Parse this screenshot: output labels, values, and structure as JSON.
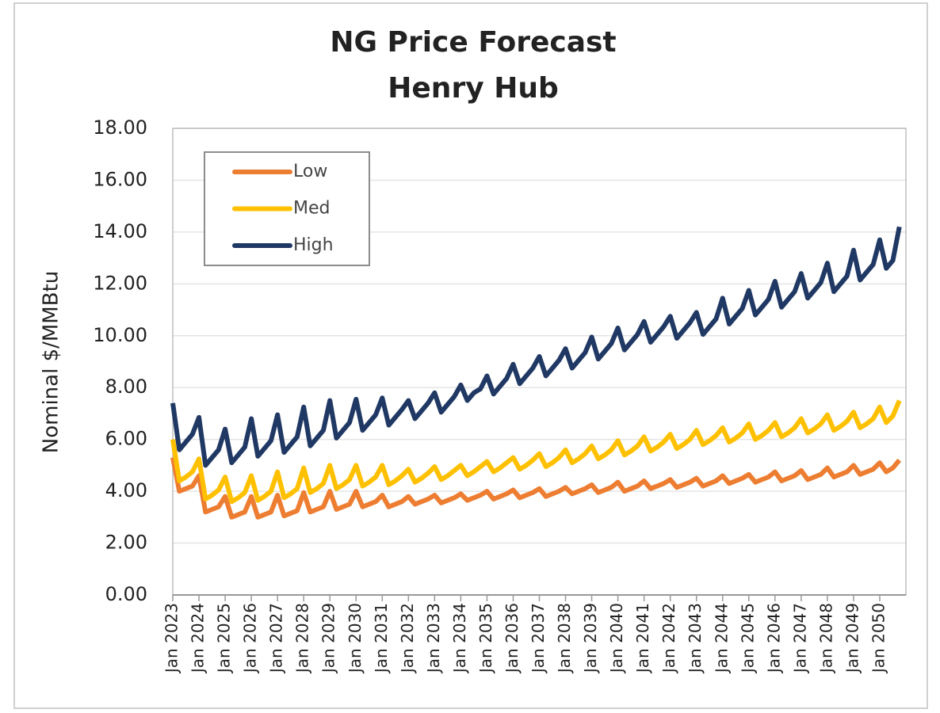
{
  "chart_data": {
    "type": "line",
    "title": "NG Price Forecast",
    "subtitle": "Henry Hub",
    "y_label": "Nominal $/MMBtu",
    "categories": [
      "Jan 2023",
      null,
      null,
      null,
      "Jan 2024",
      null,
      null,
      null,
      "Jan 2025",
      null,
      null,
      null,
      "Jan 2026",
      null,
      null,
      null,
      "Jan 2027",
      null,
      null,
      null,
      "Jan 2028",
      null,
      null,
      null,
      "Jan 2029",
      null,
      null,
      null,
      "Jan 2030",
      null,
      null,
      null,
      "Jan 2031",
      null,
      null,
      null,
      "Jan 2032",
      null,
      null,
      null,
      "Jan 2033",
      null,
      null,
      null,
      "Jan 2034",
      null,
      null,
      null,
      "Jan 2035",
      null,
      null,
      null,
      "Jan 2036",
      null,
      null,
      null,
      "Jan 2037",
      null,
      null,
      null,
      "Jan 2038",
      null,
      null,
      null,
      "Jan 2039",
      null,
      null,
      null,
      "Jan 2040",
      null,
      null,
      null,
      "Jan 2041",
      null,
      null,
      null,
      "Jan 2042",
      null,
      null,
      null,
      "Jan 2043",
      null,
      null,
      null,
      "Jan 2044",
      null,
      null,
      null,
      "Jan 2045",
      null,
      null,
      null,
      "Jan 2046",
      null,
      null,
      null,
      "Jan 2047",
      null,
      null,
      null,
      "Jan 2048",
      null,
      null,
      null,
      "Jan 2049",
      null,
      null,
      null,
      "Jan 2050",
      null,
      null,
      null
    ],
    "series": [
      {
        "name": "Low",
        "color": "#ed7d31",
        "values": [
          5.3,
          4.0,
          4.1,
          4.2,
          4.6,
          3.2,
          3.3,
          3.4,
          3.8,
          3.0,
          3.1,
          3.2,
          3.8,
          3.0,
          3.1,
          3.2,
          3.85,
          3.05,
          3.15,
          3.25,
          3.95,
          3.2,
          3.3,
          3.4,
          4.0,
          3.3,
          3.4,
          3.5,
          4.0,
          3.4,
          3.5,
          3.6,
          3.85,
          3.4,
          3.5,
          3.6,
          3.8,
          3.5,
          3.6,
          3.7,
          3.85,
          3.55,
          3.65,
          3.75,
          3.9,
          3.65,
          3.75,
          3.85,
          4.0,
          3.7,
          3.8,
          3.9,
          4.05,
          3.75,
          3.85,
          3.95,
          4.1,
          3.8,
          3.9,
          4.0,
          4.15,
          3.9,
          4.0,
          4.1,
          4.25,
          3.95,
          4.05,
          4.15,
          4.35,
          4.0,
          4.1,
          4.2,
          4.4,
          4.1,
          4.2,
          4.3,
          4.45,
          4.15,
          4.25,
          4.35,
          4.5,
          4.2,
          4.3,
          4.4,
          4.6,
          4.3,
          4.4,
          4.5,
          4.65,
          4.35,
          4.45,
          4.55,
          4.75,
          4.4,
          4.5,
          4.6,
          4.8,
          4.45,
          4.55,
          4.65,
          4.9,
          4.55,
          4.65,
          4.75,
          5.0,
          4.65,
          4.75,
          4.85,
          5.1,
          4.75,
          4.9,
          5.2
        ]
      },
      {
        "name": "Med",
        "color": "#ffc000",
        "values": [
          6.0,
          4.4,
          4.55,
          4.75,
          5.25,
          3.7,
          3.85,
          4.05,
          4.55,
          3.6,
          3.75,
          3.95,
          4.6,
          3.65,
          3.8,
          4.0,
          4.75,
          3.75,
          3.9,
          4.1,
          4.9,
          3.95,
          4.1,
          4.3,
          5.0,
          4.1,
          4.25,
          4.45,
          5.0,
          4.2,
          4.35,
          4.55,
          5.0,
          4.25,
          4.4,
          4.6,
          4.85,
          4.35,
          4.5,
          4.7,
          4.95,
          4.45,
          4.6,
          4.8,
          5.0,
          4.6,
          4.75,
          4.95,
          5.15,
          4.75,
          4.9,
          5.1,
          5.3,
          4.85,
          5.0,
          5.2,
          5.45,
          4.95,
          5.1,
          5.3,
          5.6,
          5.1,
          5.25,
          5.45,
          5.75,
          5.25,
          5.4,
          5.6,
          5.95,
          5.4,
          5.55,
          5.75,
          6.1,
          5.55,
          5.7,
          5.9,
          6.2,
          5.65,
          5.8,
          6.0,
          6.35,
          5.8,
          5.95,
          6.15,
          6.45,
          5.9,
          6.05,
          6.25,
          6.6,
          6.0,
          6.15,
          6.35,
          6.65,
          6.1,
          6.25,
          6.45,
          6.8,
          6.25,
          6.4,
          6.6,
          6.95,
          6.35,
          6.5,
          6.7,
          7.05,
          6.45,
          6.6,
          6.8,
          7.25,
          6.65,
          6.9,
          7.5
        ]
      },
      {
        "name": "High",
        "color": "#203864",
        "values": [
          7.4,
          5.6,
          5.9,
          6.2,
          6.85,
          5.0,
          5.3,
          5.6,
          6.4,
          5.1,
          5.4,
          5.7,
          6.8,
          5.35,
          5.65,
          5.95,
          6.95,
          5.5,
          5.8,
          6.1,
          7.25,
          5.75,
          6.05,
          6.35,
          7.5,
          6.05,
          6.35,
          6.65,
          7.55,
          6.35,
          6.65,
          6.95,
          7.6,
          6.55,
          6.85,
          7.15,
          7.5,
          6.8,
          7.1,
          7.4,
          7.8,
          7.05,
          7.35,
          7.65,
          8.1,
          7.5,
          7.8,
          7.95,
          8.45,
          7.75,
          8.05,
          8.35,
          8.9,
          8.15,
          8.45,
          8.75,
          9.2,
          8.45,
          8.75,
          9.05,
          9.5,
          8.75,
          9.05,
          9.35,
          9.95,
          9.1,
          9.4,
          9.7,
          10.3,
          9.45,
          9.75,
          10.05,
          10.55,
          9.75,
          10.05,
          10.35,
          10.75,
          9.9,
          10.2,
          10.5,
          10.9,
          10.05,
          10.35,
          10.65,
          11.45,
          10.45,
          10.75,
          11.05,
          11.75,
          10.8,
          11.1,
          11.4,
          12.1,
          11.1,
          11.4,
          11.7,
          12.4,
          11.45,
          11.75,
          12.05,
          12.8,
          11.7,
          12.0,
          12.3,
          13.3,
          12.15,
          12.45,
          12.75,
          13.7,
          12.6,
          12.9,
          14.2
        ]
      }
    ],
    "ylim": [
      0,
      18
    ],
    "yticks": [
      {
        "value": 0,
        "label": "0.00"
      },
      {
        "value": 2,
        "label": "2.00"
      },
      {
        "value": 4,
        "label": "4.00"
      },
      {
        "value": 6,
        "label": "6.00"
      },
      {
        "value": 8,
        "label": "8.00"
      },
      {
        "value": 10,
        "label": "10.00"
      },
      {
        "value": 12,
        "label": "12.00"
      },
      {
        "value": 14,
        "label": "14.00"
      },
      {
        "value": 16,
        "label": "16.00"
      },
      {
        "value": 18,
        "label": "18.00"
      }
    ],
    "grid": true,
    "legend": "upper-left"
  }
}
